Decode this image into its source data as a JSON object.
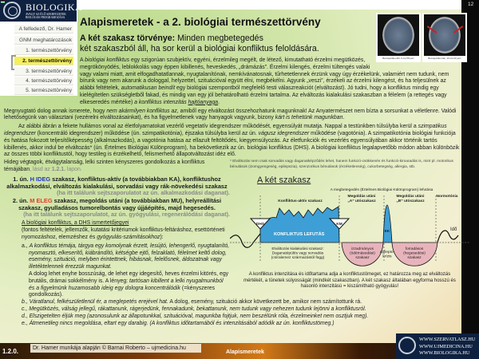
{
  "logo": {
    "name": "BIOLOGIKA",
    "subtitle": "AVAGY AZ ÉLŐ SZERVEZETEK BIOLÓGIAI PROGRAMOZÁSA"
  },
  "nav": [
    {
      "label": "A felfedező, Dr. Hamer"
    },
    {
      "label": "GNM meghatározások"
    },
    {
      "label": "1. természettörvény"
    },
    {
      "label": "2. természettörvény",
      "active": true
    },
    {
      "label": "3. természettörvény"
    },
    {
      "label": "4. természettörvény"
    },
    {
      "label": "5. természettörvény"
    }
  ],
  "page_number": "12",
  "title": "Alapismeretek - a 2. biológiai természettörvény",
  "law": {
    "bold": "A két szakasz törvénye:",
    "line1": " Minden megbetegedés",
    "line2": "két szakaszból áll, ha sor kerül a biológiai konfliktus feloldására."
  },
  "images": [
    {
      "caption": "Becsapódás előtt, 9 óra 58 perc"
    },
    {
      "caption": "Becsapódás után, 10 óra 02 perc"
    }
  ],
  "p1": [
    {
      "t": "A "
    },
    {
      "t": "biológiai konfliktus",
      "s": "i"
    },
    {
      "t": " egy szigorúan szubjektív, egyéni, érzelmileg megélt, de létező, kimutatható érzelmi megütközés, megrökönyödés, leblokkolás vagy éppen kibillenés, heveskedés, „drámázás”. Érzelmi kilengés, érzelmi túltengés valaki vagy valami miatt, amit elfogadhatatlannak, nyugtalanítónak, nemkívánatosnak, tűrhetetlennek érzünk vagy úgy érzékelünk, valamiért nem tudunk, nem bírunk vagy nem akarunk a dologgal, helyzettel, szituációval együtt élni, megbékélni. Agyunk „veszi”, érzékeli az érzelmi kilengést, és ha teljesülnek az alábbi feltételek, "
    },
    {
      "t": "automatikusan beindít",
      "s": "i"
    },
    {
      "t": " egy biológiai szempontból megfelelő testi válaszreakciót (elváltozást). Jó tudni, hogy a konfliktus mindig egy kielégítetlen szükségletből fakad, és mindig van egy jól behatárolható érzelmi tartalma. Az elváltozás kialakulási szakaszban a félelem (a rettegés vagy elkeseredés mértéke) "
    },
    {
      "t": "a konfliktus intenzitás ",
      "s": "i"
    },
    {
      "t": "hajtóanyaga",
      "s": "i u"
    },
    {
      "t": "."
    }
  ],
  "p2": [
    {
      "t": "Megnyugtató dolog annak ismerete, hogy "
    },
    {
      "t": "nem akármilyen konfliktus az",
      "s": "i"
    },
    {
      "t": ", amiből egy elváltozást összehozhatunk magunknak! Az Anyatermészet nem bízta a sorsunkat a véletlenre. Valódi lehetőségünk van választani (vezérelni elváltozásainkat), és ha figyelmetlenek vagy hanyagok vagyunk, bizony "
    },
    {
      "t": "kárt is tehetünk magunkban",
      "s": "i"
    },
    {
      "t": "."
    }
  ],
  "p3": [
    {
      "t": "Az alábbi ábrán a fekete hullámos vonal az életfolyamatokat vezérlő vegetatív idegrendszer működését, egyensúlyát mutatja. Nappal a testünkben túlsúlyba kerül a "
    },
    {
      "t": "szimpatikus idegrendszer",
      "s": "i"
    },
    {
      "t": " (koncentráló idegrendszer) működése (ún. szimpatikotónia), éjszaka túlsúlyba kerül az ún. "
    },
    {
      "t": "vágusz idegrendszer",
      "s": "i"
    },
    {
      "t": " működése (vagotónia). A szimpatikotónia biológiai funkciója és hatása fokozott teljesítőképesség (alkalmazkodás), a vagotónia hatása az ellazult feltöltődés, kiegyensúlyozás. Az életfunkciók és vezérlés egyensúlyában akkor történik tartós kibillenés, akkor indul be elváltozás* (ún. Értelmes Biológiai Különprogram), ha bekövetkezik az ún. biológiai konfliktus (DHS). A biológiai konfliktus legalapvetőbb módon abban különbözik az összes többi konfliktustól, hogy testileg is érzékelhető, felismerhető állapotváltozást idéz elő."
    }
  ],
  "p4": [
    {
      "t": "Hideg végtagok, étvágytalanság, lelki szinten kényszeres gondolkozás a konfliktus témájában"
    },
    {
      "t": ", lásd az ",
      "s": "g"
    },
    {
      "t": "1.2.1.",
      "s": "b g"
    },
    {
      "t": " lapon.",
      "s": "g"
    }
  ],
  "footnote": "* Elváltozás nem csak sorvadás vagy daganatképződés lehet, hanem funkció-csökkenés és funkció-kimaradás is, mint pl. motorikus bénulások (izomgyengeség, epilepszia), szenzorikus bénulások (érzéketlenség), cukorbetegség, allergia, stb.",
  "phase1": [
    {
      "t": "1. ún. "
    },
    {
      "t": "H IDEG",
      "s": "blue"
    },
    {
      "t": " szakasz, konfliktus-aktív (a továbbiakban KA), konfliktushoz alkalmazkodási, elváltozás kialakulási, sorvadási vagy rák-növekedési szakasz"
    }
  ],
  "phase1_note": "(ha itt találunk sejtszaporulatot az ún. alkalmazkodási daganat).",
  "phase2": [
    {
      "t": "2. ún. "
    },
    {
      "t": "M ELEG",
      "s": "red"
    },
    {
      "t": " szakasz, megoldás utáni (a továbbiakban MU), helyreállítási szakasz, gyulladásos tumorelbontás vagy újjáépítés, majd hegesedés."
    }
  ],
  "phase2_note": "(ha itt találunk sejtszaporulatot, az ún. gyógyulási, regenerálódási daganat).",
  "dhs": {
    "heading": "A biológiai konfliktus, a DHS ismertetőjegyei",
    "intro": [
      {
        "t": "(fontos feltételek, jellemzők, kutatási kritériumok konfliktus-feltáráshoz, esettörténeti nyomozáshoz, elemzéshez és "
      },
      {
        "t": "gyógyulás-számításokhoz",
        "s": "i"
      },
      {
        "t": "):"
      }
    ],
    "a": [
      {
        "t": "a., "
      },
      {
        "t": "A konfliktus témája, tárgya egy komolynak érzett, lesújtó, lehengerlő, nyugtalanító, nyomasztó, elkeserítő, kiábrándító, kétségbe ejtő, felzaklató, félelmet keltő dolog, esemény, szituáció, melyben érintettnek, hibásnak, felelősnek, áldozatnak vagy illetéktelennek érezzük magunkat.",
        "s": "i"
      }
    ],
    "a2": [
      {
        "t": "A dolog lehet enyhe bosszúság, de lehet egy idegesítő, heves érzelmi kitörés, egy brutális, drámai sokkélmény is. A lényeg: "
      },
      {
        "t": "tartósan kibillent a lelki nyugalmunkból és a figyelmünk huzamosabb ideig egy dologra koncentrálódik",
        "s": "i"
      },
      {
        "t": " (=kényszeres gondolkozás)."
      }
    ],
    "b": [
      {
        "t": "b., Váratlanul, felkészületlenül ér, a meglepetés erejével hat.",
        "s": "i"
      },
      {
        "t": " A dolog, esemény, szituáció akkor következett be, amikor nem számítottunk rá."
      }
    ],
    "c": [
      {
        "t": "c., Megütközés, válság jellegű, rákattanunk, rágerjedünk, fennakadunk, bekattanunk, nem tudunk vagy nehezen tudunk lejönni a konfliktusról.",
        "s": "i"
      }
    ],
    "d": [
      {
        "t": "d., Elszigetelten éljük meg (azonosulunk az állapotunkkal, szituációval, magunkba fojtjuk, nem beszélünk róla, érzelmeinket nem osztjuk meg).",
        "s": "i"
      }
    ],
    "e": [
      {
        "t": "e., Átmenetileg nincs megoldása, eltart egy darabig. (A konfliktus időtartamából és intenzitásából adódik az ún. konfliktustömeg.)",
        "s": "i"
      }
    ]
  },
  "diagram": {
    "heading": "A két szakasz",
    "subtitle": "A megbetegedés (Értelmes Biológiai Különprogram) lefutása",
    "ka": "Konfliktus-aktív szakasz",
    "mua1": "Megoldás utáni",
    "mua2": "„A” utószakasz",
    "mub1": "Megoldás utáni",
    "mub2": "„B” utószakasz",
    "normo": "Normotónia",
    "dhs": "DHS",
    "lefutas": "KONFLIKTUS LEFUTÁS",
    "km": "KM",
    "ek": "EK",
    "ido": "Idő",
    "elv1": "Elváltozás kialakulási szakasz:",
    "elv2": "Daganatépülés vagy sorvadás",
    "elv3": "(csíralemez származástól függ)",
    "izz1": "izzadmányos",
    "izz2": "(ödémásodási)",
    "izz3": "szakasz",
    "epi1": "epilepto-",
    "epi2": "krízis",
    "for1": "forradásos",
    "for2": "(hegesedési)",
    "for3": "szakasz",
    "colors": {
      "active": "#3d9fd6",
      "healing": "#e8b4bc",
      "line": "#111111"
    }
  },
  "caption": "A konfliktus intenzitása és időtartama adja a konfliktustömeget, ez határozza meg az elváltozás mértékét, a tünetek súlyosságát (mindkét szakaszban). A két szakasz általában egyforma hosszú és hasonló intenzitású = kiszámítható gyógyulás!",
  "footer": {
    "version": "1.2.0.",
    "credit": "Dr. Hamer munkája alapján © Barnai Roberto – ujmedicina.hu",
    "section": "Alapismeretek",
    "sites": [
      "WWW.SZERVATLASZ.HU",
      "WWW.UJMEDICINA.HU",
      "WWW.BIOLOGIKA.HU"
    ]
  }
}
